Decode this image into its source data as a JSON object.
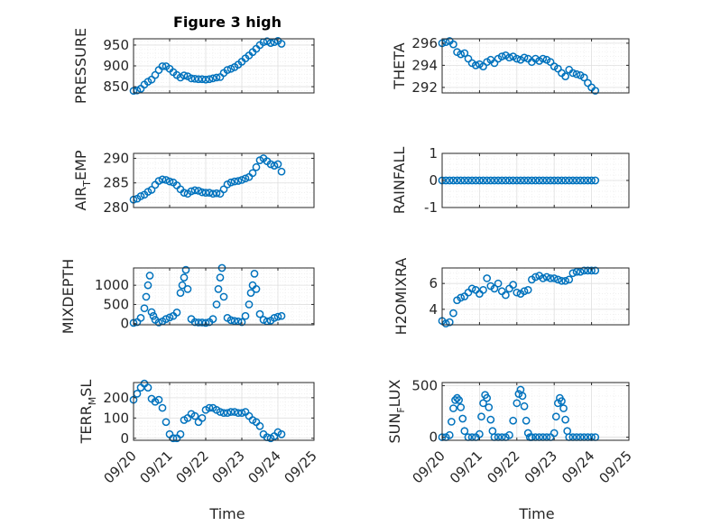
{
  "figure": {
    "title": "Figure 3 high",
    "xlabel": "Time"
  },
  "colors": {
    "marker": "#0072BD",
    "axis": "#262626",
    "grid": "#dfdfdf",
    "minorgrid": "#ececec"
  },
  "x_ticks": [
    "09/20",
    "09/21",
    "09/22",
    "09/23",
    "09/24",
    "09/25"
  ],
  "chart_data": [
    {
      "id": "pressure",
      "type": "scatter",
      "ylabel": "PRESSURE",
      "ylim": [
        835,
        965
      ],
      "yticks": [
        850,
        900,
        950
      ],
      "xlim": [
        0,
        5
      ],
      "grid": "on",
      "x": [
        0.0,
        0.1,
        0.2,
        0.3,
        0.4,
        0.5,
        0.6,
        0.7,
        0.8,
        0.9,
        1.0,
        1.1,
        1.2,
        1.3,
        1.4,
        1.5,
        1.6,
        1.7,
        1.8,
        1.9,
        2.0,
        2.1,
        2.2,
        2.3,
        2.4,
        2.5,
        2.6,
        2.7,
        2.8,
        2.9,
        3.0,
        3.1,
        3.2,
        3.3,
        3.4,
        3.5,
        3.6,
        3.7,
        3.8,
        3.9,
        4.0,
        4.1
      ],
      "y": [
        840,
        841,
        845,
        855,
        862,
        867,
        878,
        890,
        899,
        899,
        893,
        885,
        878,
        872,
        877,
        875,
        870,
        869,
        868,
        868,
        867,
        868,
        870,
        872,
        873,
        883,
        890,
        893,
        897,
        903,
        910,
        918,
        925,
        933,
        941,
        950,
        957,
        959,
        955,
        957,
        960,
        953
      ]
    },
    {
      "id": "theta",
      "type": "scatter",
      "ylabel": "THETA",
      "ylim": [
        291.5,
        296.4
      ],
      "yticks": [
        292,
        294,
        296
      ],
      "xlim": [
        0,
        5
      ],
      "grid": "on",
      "x": [
        0.0,
        0.1,
        0.2,
        0.3,
        0.4,
        0.5,
        0.6,
        0.7,
        0.8,
        0.9,
        1.0,
        1.1,
        1.2,
        1.3,
        1.4,
        1.5,
        1.6,
        1.7,
        1.8,
        1.9,
        2.0,
        2.1,
        2.2,
        2.3,
        2.4,
        2.5,
        2.6,
        2.7,
        2.8,
        2.9,
        3.0,
        3.1,
        3.2,
        3.3,
        3.4,
        3.5,
        3.6,
        3.7,
        3.8,
        3.9,
        4.0,
        4.1
      ],
      "y": [
        296.0,
        296.1,
        296.2,
        295.9,
        295.2,
        295.0,
        295.1,
        294.6,
        294.2,
        294.0,
        294.1,
        293.9,
        294.3,
        294.5,
        294.2,
        294.6,
        294.8,
        294.9,
        294.7,
        294.8,
        294.6,
        294.5,
        294.7,
        294.6,
        294.3,
        294.6,
        294.4,
        294.6,
        294.5,
        294.3,
        293.9,
        293.7,
        293.3,
        293.0,
        293.6,
        293.3,
        293.2,
        293.1,
        292.9,
        292.4,
        292.0,
        291.7
      ]
    },
    {
      "id": "air_temp",
      "type": "scatter",
      "ylabel": "AIR",
      "ylabel_sub": "T",
      "ylabel_rest": "EMP",
      "ylim": [
        280,
        291
      ],
      "yticks": [
        280,
        285,
        290
      ],
      "xlim": [
        0,
        5
      ],
      "grid": "on",
      "x": [
        0.0,
        0.1,
        0.2,
        0.3,
        0.4,
        0.5,
        0.6,
        0.7,
        0.8,
        0.9,
        1.0,
        1.1,
        1.2,
        1.3,
        1.4,
        1.5,
        1.6,
        1.7,
        1.8,
        1.9,
        2.0,
        2.1,
        2.2,
        2.3,
        2.4,
        2.5,
        2.6,
        2.7,
        2.8,
        2.9,
        3.0,
        3.1,
        3.2,
        3.3,
        3.4,
        3.5,
        3.6,
        3.7,
        3.8,
        3.9,
        4.0,
        4.1
      ],
      "y": [
        281.6,
        281.8,
        282.3,
        282.6,
        283.2,
        283.6,
        284.6,
        285.4,
        285.7,
        285.6,
        285.3,
        285.1,
        284.5,
        283.7,
        283.0,
        282.8,
        283.3,
        283.5,
        283.4,
        283.1,
        283.0,
        283.0,
        282.8,
        282.9,
        282.8,
        283.7,
        284.7,
        285.1,
        285.3,
        285.4,
        285.6,
        285.9,
        286.2,
        287.0,
        288.2,
        289.6,
        290.0,
        289.4,
        288.8,
        288.5,
        288.8,
        287.3
      ]
    },
    {
      "id": "rainfall",
      "type": "scatter",
      "ylabel": "RAINFALL",
      "ylim": [
        -1,
        1
      ],
      "yticks": [
        -1,
        0,
        1
      ],
      "xlim": [
        0,
        5
      ],
      "grid": "on",
      "x": [
        0.0,
        0.1,
        0.2,
        0.3,
        0.4,
        0.5,
        0.6,
        0.7,
        0.8,
        0.9,
        1.0,
        1.1,
        1.2,
        1.3,
        1.4,
        1.5,
        1.6,
        1.7,
        1.8,
        1.9,
        2.0,
        2.1,
        2.2,
        2.3,
        2.4,
        2.5,
        2.6,
        2.7,
        2.8,
        2.9,
        3.0,
        3.1,
        3.2,
        3.3,
        3.4,
        3.5,
        3.6,
        3.7,
        3.8,
        3.9,
        4.0,
        4.1
      ],
      "y": [
        0,
        0,
        0,
        0,
        0,
        0,
        0,
        0,
        0,
        0,
        0,
        0,
        0,
        0,
        0,
        0,
        0,
        0,
        0,
        0,
        0,
        0,
        0,
        0,
        0,
        0,
        0,
        0,
        0,
        0,
        0,
        0,
        0,
        0,
        0,
        0,
        0,
        0,
        0,
        0,
        0,
        0
      ]
    },
    {
      "id": "mixdepth",
      "type": "scatter",
      "ylabel": "MIXDEPTH",
      "ylim": [
        -30,
        1450
      ],
      "yticks": [
        0,
        500,
        1000
      ],
      "xlim": [
        0,
        5
      ],
      "grid": "on",
      "x": [
        0.0,
        0.1,
        0.2,
        0.3,
        0.35,
        0.4,
        0.45,
        0.5,
        0.55,
        0.6,
        0.7,
        0.8,
        0.9,
        1.0,
        1.1,
        1.2,
        1.3,
        1.35,
        1.4,
        1.45,
        1.5,
        1.6,
        1.7,
        1.8,
        1.9,
        2.0,
        2.1,
        2.2,
        2.3,
        2.35,
        2.4,
        2.45,
        2.5,
        2.6,
        2.7,
        2.8,
        2.9,
        3.0,
        3.1,
        3.2,
        3.25,
        3.3,
        3.35,
        3.4,
        3.5,
        3.6,
        3.7,
        3.8,
        3.9,
        4.0,
        4.1
      ],
      "y": [
        20,
        40,
        150,
        400,
        700,
        1000,
        1250,
        300,
        200,
        100,
        30,
        60,
        120,
        160,
        200,
        290,
        800,
        1000,
        1200,
        1400,
        900,
        120,
        40,
        30,
        30,
        20,
        40,
        120,
        500,
        900,
        1200,
        1450,
        700,
        150,
        90,
        70,
        60,
        40,
        200,
        500,
        800,
        1000,
        1300,
        900,
        250,
        100,
        60,
        80,
        150,
        180,
        200
      ]
    },
    {
      "id": "h2omixra",
      "type": "scatter",
      "ylabel": "H2OMIXRA",
      "ylim": [
        2.8,
        7.2
      ],
      "yticks": [
        4,
        6
      ],
      "xlim": [
        0,
        5
      ],
      "grid": "on",
      "x": [
        0.0,
        0.1,
        0.2,
        0.3,
        0.4,
        0.5,
        0.6,
        0.7,
        0.8,
        0.9,
        1.0,
        1.1,
        1.2,
        1.3,
        1.4,
        1.5,
        1.6,
        1.7,
        1.8,
        1.9,
        2.0,
        2.1,
        2.2,
        2.3,
        2.4,
        2.5,
        2.6,
        2.7,
        2.8,
        2.9,
        3.0,
        3.1,
        3.2,
        3.3,
        3.4,
        3.5,
        3.6,
        3.7,
        3.8,
        3.9,
        4.0,
        4.1
      ],
      "y": [
        3.1,
        2.9,
        3.0,
        3.7,
        4.7,
        4.9,
        5.0,
        5.3,
        5.6,
        5.5,
        5.2,
        5.5,
        6.4,
        5.8,
        5.6,
        6.0,
        5.4,
        5.1,
        5.6,
        5.9,
        5.3,
        5.2,
        5.4,
        5.5,
        6.3,
        6.5,
        6.6,
        6.4,
        6.5,
        6.4,
        6.4,
        6.3,
        6.2,
        6.2,
        6.3,
        6.8,
        6.9,
        6.9,
        7.0,
        7.0,
        7.0,
        7.0
      ]
    },
    {
      "id": "terr_msl",
      "type": "scatter",
      "ylabel": "TERR",
      "ylabel_sub": "M",
      "ylabel_rest": "SL",
      "ylim": [
        -10,
        275
      ],
      "yticks": [
        0,
        100,
        200
      ],
      "xlim": [
        0,
        5
      ],
      "grid": "on",
      "x": [
        0.0,
        0.1,
        0.2,
        0.3,
        0.4,
        0.5,
        0.6,
        0.7,
        0.8,
        0.9,
        1.0,
        1.1,
        1.2,
        1.3,
        1.4,
        1.5,
        1.6,
        1.7,
        1.8,
        1.9,
        2.0,
        2.1,
        2.2,
        2.3,
        2.4,
        2.5,
        2.6,
        2.7,
        2.8,
        2.9,
        3.0,
        3.1,
        3.2,
        3.3,
        3.4,
        3.5,
        3.6,
        3.7,
        3.8,
        3.9,
        4.0,
        4.1
      ],
      "y": [
        190,
        220,
        250,
        270,
        250,
        195,
        180,
        190,
        150,
        80,
        20,
        0,
        0,
        20,
        90,
        100,
        120,
        110,
        80,
        100,
        140,
        150,
        150,
        140,
        130,
        125,
        125,
        130,
        130,
        125,
        125,
        130,
        110,
        90,
        80,
        60,
        20,
        5,
        0,
        10,
        30,
        20
      ]
    },
    {
      "id": "sun_flux",
      "type": "scatter",
      "ylabel": "SUN",
      "ylabel_sub": "F",
      "ylabel_rest": "LUX",
      "ylim": [
        -30,
        530
      ],
      "yticks": [
        0,
        500
      ],
      "xlim": [
        0,
        5
      ],
      "grid": "on",
      "x": [
        0.0,
        0.1,
        0.2,
        0.25,
        0.3,
        0.35,
        0.4,
        0.45,
        0.5,
        0.55,
        0.6,
        0.7,
        0.8,
        0.9,
        1.0,
        1.05,
        1.1,
        1.15,
        1.2,
        1.25,
        1.3,
        1.35,
        1.4,
        1.5,
        1.6,
        1.7,
        1.8,
        1.9,
        2.0,
        2.05,
        2.1,
        2.15,
        2.2,
        2.25,
        2.3,
        2.35,
        2.4,
        2.5,
        2.6,
        2.7,
        2.8,
        2.9,
        3.0,
        3.05,
        3.1,
        3.15,
        3.2,
        3.25,
        3.3,
        3.35,
        3.4,
        3.5,
        3.6,
        3.7,
        3.8,
        3.9,
        4.0,
        4.1
      ],
      "y": [
        0,
        0,
        20,
        150,
        280,
        360,
        380,
        360,
        290,
        180,
        60,
        0,
        0,
        0,
        30,
        200,
        330,
        410,
        380,
        290,
        170,
        60,
        0,
        0,
        0,
        0,
        20,
        160,
        330,
        420,
        460,
        400,
        300,
        160,
        40,
        0,
        0,
        0,
        0,
        0,
        0,
        0,
        40,
        200,
        330,
        380,
        350,
        280,
        170,
        60,
        0,
        0,
        0,
        0,
        0,
        0,
        0,
        0
      ]
    }
  ]
}
